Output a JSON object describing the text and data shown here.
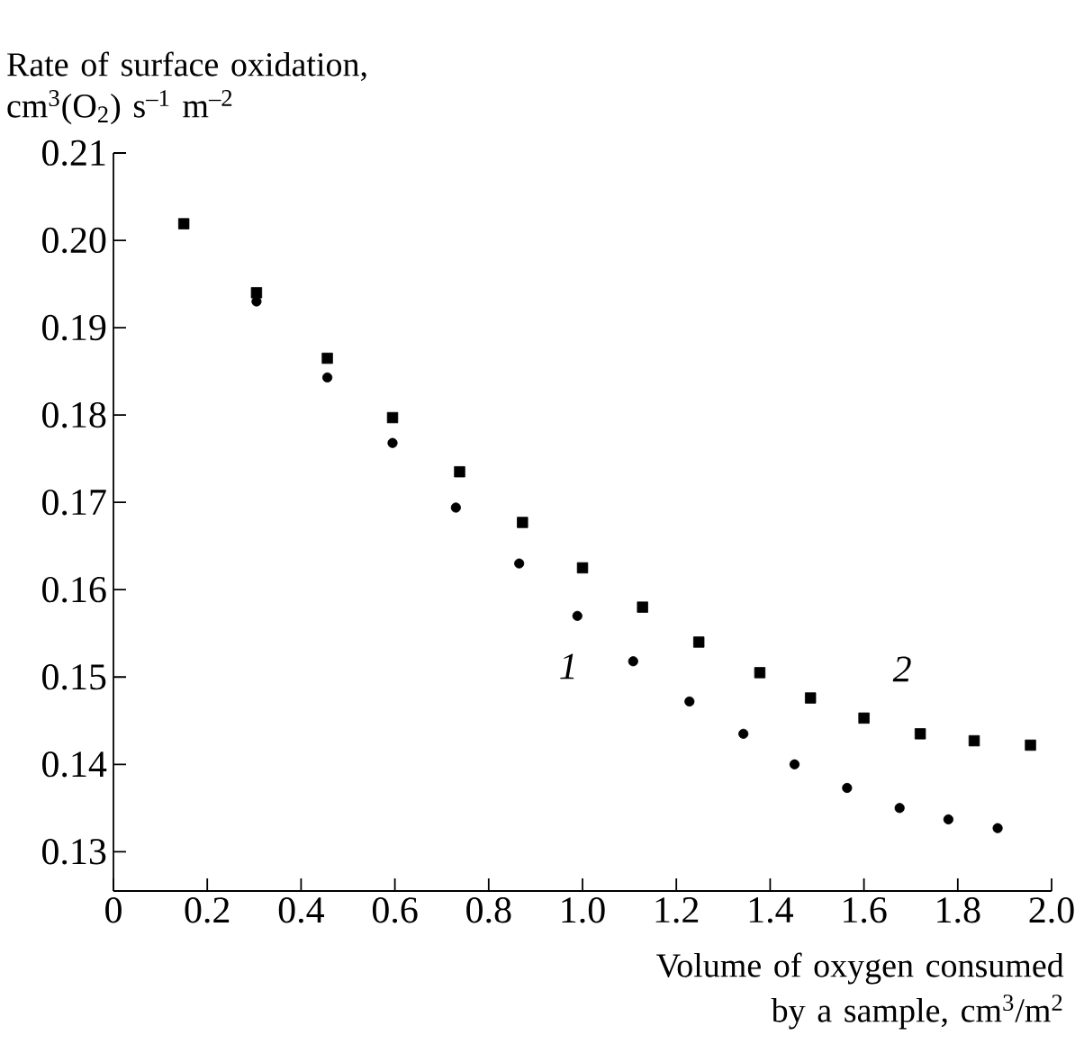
{
  "chart_data": {
    "type": "scatter",
    "xlabel": "Volume of oxygen consumed by a sample, cm$^{3}$/m$^{2}$",
    "ylabel": "Rate of surface oxidation, cm$^{3}$(O$_{2}$) s$^{–1}$ m$^{–2}$",
    "series": [
      {
        "name": "1",
        "color": "#000000",
        "marker": "circle",
        "x": [
          0.305,
          0.456,
          0.595,
          0.73,
          0.865,
          0.989,
          1.108,
          1.228,
          1.343,
          1.452,
          1.564,
          1.676,
          1.78,
          1.885
        ],
        "values": [
          0.193,
          0.1843,
          0.1768,
          0.1694,
          0.163,
          0.157,
          0.1518,
          0.1472,
          0.1435,
          0.14,
          0.1373,
          0.135,
          0.1337,
          0.1327
        ]
      },
      {
        "name": "2",
        "color": "#000000",
        "marker": "square",
        "x": [
          0.15,
          0.305,
          0.456,
          0.595,
          0.738,
          0.872,
          1.0,
          1.128,
          1.248,
          1.378,
          1.486,
          1.6,
          1.72,
          1.835,
          1.955
        ],
        "values": [
          0.2019,
          0.194,
          0.1865,
          0.1797,
          0.1735,
          0.1677,
          0.1625,
          0.158,
          0.154,
          0.1505,
          0.1476,
          0.1453,
          0.1435,
          0.1427,
          0.1422
        ]
      }
    ],
    "xlim": [
      0,
      2.0
    ],
    "ylim": [
      0.1255,
      0.21
    ],
    "xticks": [
      0,
      0.2,
      0.4,
      0.6,
      0.8,
      {
        "value": 1.0,
        "label": "1.0"
      },
      1.2,
      1.4,
      1.6,
      1.8,
      {
        "value": 2.0,
        "label": "2.0"
      }
    ],
    "yticks": [
      0.13,
      0.14,
      0.15,
      0.16,
      0.17,
      0.18,
      0.19,
      {
        "value": 0.2,
        "label": "0.20"
      },
      0.21
    ],
    "grid": false
  }
}
